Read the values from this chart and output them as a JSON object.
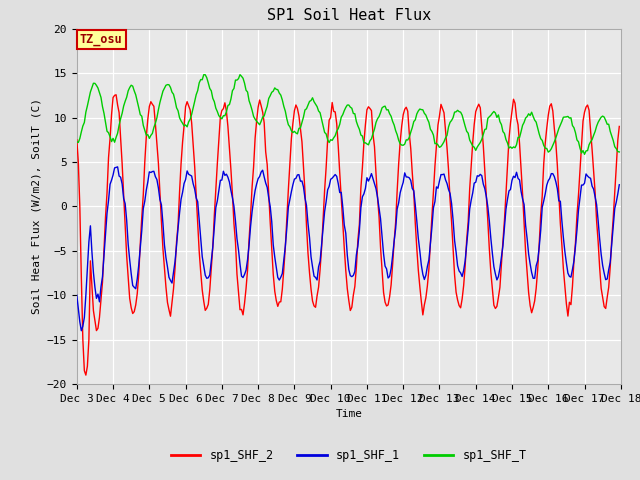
{
  "title": "SP1 Soil Heat Flux",
  "xlabel": "Time",
  "ylabel": "Soil Heat Flux (W/m2), SoilT (C)",
  "ylim": [
    -20,
    20
  ],
  "xlim": [
    0,
    360
  ],
  "yticks": [
    -20,
    -15,
    -10,
    -5,
    0,
    5,
    10,
    15,
    20
  ],
  "xtick_labels": [
    "Dec 3",
    "Dec 4",
    "Dec 5",
    "Dec 6",
    "Dec 7",
    "Dec 8",
    "Dec 9",
    "Dec 10",
    "Dec 11",
    "Dec 12",
    "Dec 13",
    "Dec 14",
    "Dec 15",
    "Dec 16",
    "Dec 17",
    "Dec 18"
  ],
  "xtick_positions": [
    0,
    24,
    48,
    72,
    96,
    120,
    144,
    168,
    192,
    216,
    240,
    264,
    288,
    312,
    336,
    360
  ],
  "color_red": "#ff0000",
  "color_blue": "#0000dd",
  "color_green": "#00cc00",
  "line_width": 1.0,
  "bg_color": "#e0e0e0",
  "plot_bg_color": "#e8e8e8",
  "grid_color": "#ffffff",
  "tz_label": "TZ_osu",
  "tz_bg": "#ffff99",
  "tz_border": "#cc0000",
  "legend_labels": [
    "sp1_SHF_2",
    "sp1_SHF_1",
    "sp1_SHF_T"
  ],
  "title_fontsize": 11,
  "axis_fontsize": 8,
  "tick_fontsize": 8
}
